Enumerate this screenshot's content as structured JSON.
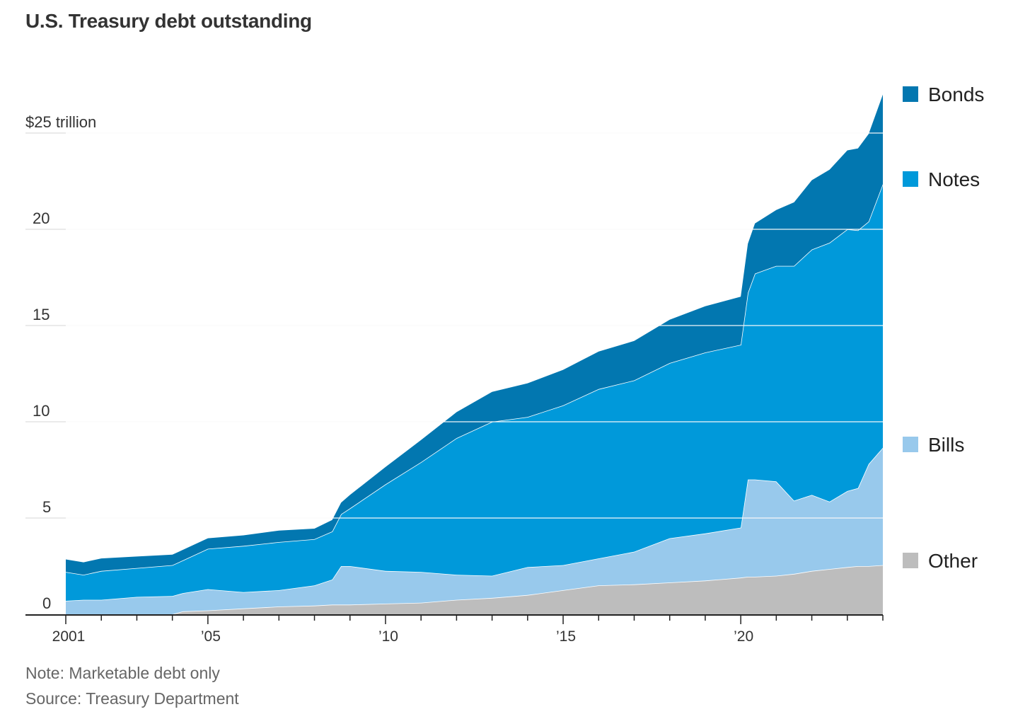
{
  "title": "U.S. Treasury debt outstanding",
  "note": "Note: Marketable debt only",
  "source": "Source: Treasury Department",
  "chart_data": {
    "type": "area",
    "stacked": true,
    "title": "U.S. Treasury debt outstanding",
    "xlabel": "",
    "ylabel": "",
    "ylim": [
      0,
      27
    ],
    "xlim": [
      2001.0,
      2024.0
    ],
    "y_ticks": [
      {
        "value": 0,
        "label": "0"
      },
      {
        "value": 5,
        "label": "5"
      },
      {
        "value": 10,
        "label": "10"
      },
      {
        "value": 15,
        "label": "15"
      },
      {
        "value": 20,
        "label": "20"
      },
      {
        "value": 25,
        "label": "$25 trillion"
      }
    ],
    "x_ticks": [
      {
        "value": 2001,
        "label": "2001"
      },
      {
        "value": 2005,
        "label": "’05"
      },
      {
        "value": 2010,
        "label": "’10"
      },
      {
        "value": 2015,
        "label": "’15"
      },
      {
        "value": 2020,
        "label": "’20"
      }
    ],
    "legend_position": "right",
    "x": [
      2001.0,
      2001.5,
      2002.0,
      2003.0,
      2004.0,
      2004.3,
      2005.0,
      2006.0,
      2007.0,
      2008.0,
      2008.5,
      2008.75,
      2009.0,
      2010.0,
      2011.0,
      2012.0,
      2013.0,
      2014.0,
      2015.0,
      2016.0,
      2017.0,
      2018.0,
      2019.0,
      2020.0,
      2020.2,
      2020.4,
      2021.0,
      2021.5,
      2022.0,
      2022.5,
      2023.0,
      2023.3,
      2023.6,
      2024.0
    ],
    "series": [
      {
        "name": "Other",
        "color": "#bdbdbd",
        "values": [
          0,
          0,
          0,
          0,
          0,
          0.15,
          0.2,
          0.3,
          0.4,
          0.45,
          0.5,
          0.5,
          0.5,
          0.55,
          0.6,
          0.75,
          0.85,
          1.0,
          1.25,
          1.5,
          1.55,
          1.65,
          1.75,
          1.9,
          1.95,
          1.95,
          2.0,
          2.1,
          2.25,
          2.35,
          2.45,
          2.5,
          2.5,
          2.55
        ]
      },
      {
        "name": "Bills",
        "color": "#98c9ec",
        "values": [
          0.7,
          0.75,
          0.75,
          0.9,
          0.95,
          0.95,
          1.1,
          0.85,
          0.85,
          1.05,
          1.3,
          2.0,
          2.0,
          1.7,
          1.6,
          1.3,
          1.15,
          1.45,
          1.3,
          1.4,
          1.7,
          2.3,
          2.45,
          2.6,
          5.05,
          5.05,
          4.9,
          3.8,
          3.95,
          3.5,
          3.95,
          4.05,
          5.3,
          6.1
        ]
      },
      {
        "name": "Notes",
        "color": "#0099da",
        "values": [
          1.5,
          1.3,
          1.5,
          1.5,
          1.6,
          1.7,
          2.1,
          2.4,
          2.5,
          2.4,
          2.5,
          2.7,
          3.0,
          4.5,
          5.7,
          7.1,
          8.0,
          7.8,
          8.3,
          8.8,
          8.9,
          9.1,
          9.4,
          9.5,
          9.7,
          10.7,
          11.2,
          12.2,
          12.75,
          13.45,
          13.6,
          13.4,
          12.6,
          13.7
        ]
      },
      {
        "name": "Bonds",
        "color": "#0277b0",
        "values": [
          0.65,
          0.65,
          0.65,
          0.6,
          0.55,
          0.55,
          0.55,
          0.55,
          0.6,
          0.55,
          0.6,
          0.6,
          0.7,
          0.9,
          1.15,
          1.35,
          1.55,
          1.75,
          1.85,
          1.95,
          2.05,
          2.25,
          2.4,
          2.5,
          2.55,
          2.6,
          2.9,
          3.3,
          3.6,
          3.8,
          4.1,
          4.25,
          4.55,
          4.65
        ]
      }
    ]
  }
}
